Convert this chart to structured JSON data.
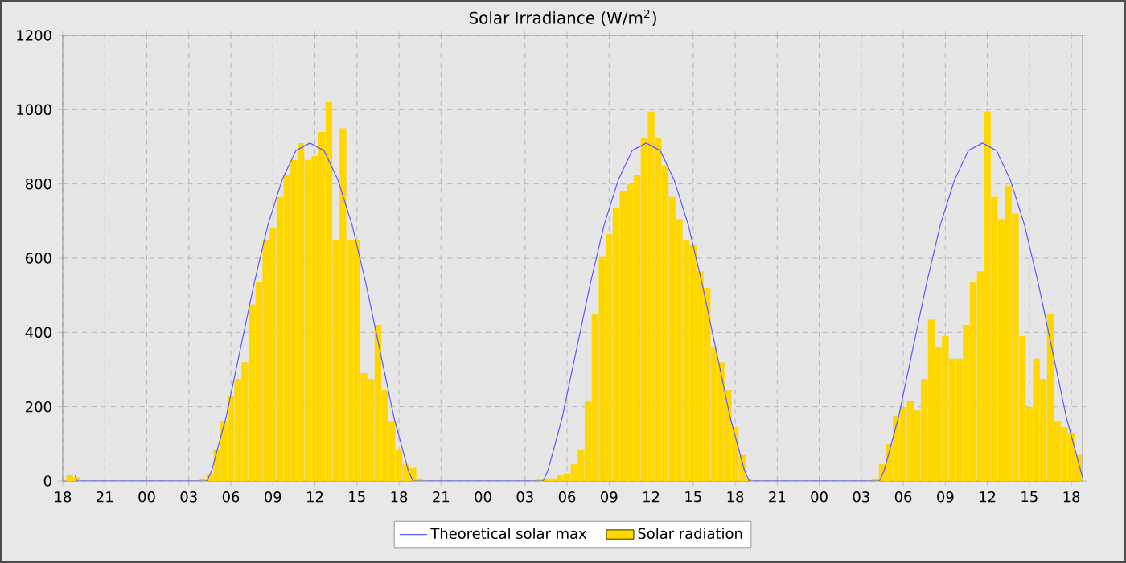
{
  "chart_data": {
    "type": "bar",
    "title": "Solar Irradiance (W/m$^{2}$)",
    "xlim": [
      18,
      90.8
    ],
    "ylim": [
      0,
      1200
    ],
    "xticks": [
      {
        "value": 18,
        "label": "18"
      },
      {
        "value": 21,
        "label": "21"
      },
      {
        "value": 24,
        "label": "00"
      },
      {
        "value": 27,
        "label": "03"
      },
      {
        "value": 30,
        "label": "06"
      },
      {
        "value": 33,
        "label": "09"
      },
      {
        "value": 36,
        "label": "12"
      },
      {
        "value": 39,
        "label": "15"
      },
      {
        "value": 42,
        "label": "18"
      },
      {
        "value": 45,
        "label": "21"
      },
      {
        "value": 48,
        "label": "00"
      },
      {
        "value": 51,
        "label": "03"
      },
      {
        "value": 54,
        "label": "06"
      },
      {
        "value": 57,
        "label": "09"
      },
      {
        "value": 60,
        "label": "12"
      },
      {
        "value": 63,
        "label": "15"
      },
      {
        "value": 66,
        "label": "18"
      },
      {
        "value": 69,
        "label": "21"
      },
      {
        "value": 72,
        "label": "00"
      },
      {
        "value": 75,
        "label": "03"
      },
      {
        "value": 78,
        "label": "06"
      },
      {
        "value": 81,
        "label": "09"
      },
      {
        "value": 84,
        "label": "12"
      },
      {
        "value": 87,
        "label": "15"
      },
      {
        "value": 90,
        "label": "18"
      }
    ],
    "yticks": [
      0,
      200,
      400,
      600,
      800,
      1000,
      1200
    ],
    "grid": true,
    "legend": "bottom",
    "series": [
      {
        "name": "Theoretical solar max",
        "type": "line",
        "color": "#5a5aff",
        "line_style": "solid",
        "x": [
          18.9,
          19.0,
          28.3,
          28.65,
          29.65,
          30.65,
          31.65,
          32.65,
          33.65,
          34.65,
          35.65,
          36.65,
          37.65,
          38.65,
          39.65,
          40.65,
          41.65,
          42.65,
          43.0,
          52.3,
          52.65,
          53.65,
          54.65,
          55.65,
          56.65,
          57.65,
          58.65,
          59.65,
          60.65,
          61.65,
          62.65,
          63.65,
          64.65,
          65.65,
          66.65,
          67.0,
          76.3,
          76.65,
          77.65,
          78.65,
          79.65,
          80.65,
          81.65,
          82.65,
          83.65,
          84.65,
          85.65,
          86.65,
          87.65,
          88.65,
          89.65,
          90.65,
          90.8
        ],
        "values": [
          15,
          0,
          0,
          30,
          170,
          350,
          530,
          690,
          810,
          890,
          910,
          890,
          810,
          690,
          530,
          350,
          170,
          30,
          0,
          0,
          30,
          170,
          350,
          530,
          690,
          810,
          890,
          910,
          890,
          810,
          690,
          530,
          350,
          170,
          30,
          0,
          0,
          30,
          170,
          350,
          530,
          690,
          810,
          890,
          910,
          890,
          810,
          690,
          530,
          350,
          170,
          30,
          10
        ]
      },
      {
        "name": "Solar radiation",
        "color": "#ffd700",
        "x": [
          18.5,
          19.0,
          28.0,
          28.5,
          29.0,
          29.5,
          30.0,
          30.5,
          31.0,
          31.5,
          32.0,
          32.5,
          33.0,
          33.5,
          34.0,
          34.5,
          35.0,
          35.5,
          36.0,
          36.5,
          37.0,
          37.5,
          38.0,
          38.5,
          39.0,
          39.5,
          40.0,
          40.5,
          41.0,
          41.5,
          42.0,
          42.5,
          43.0,
          43.5,
          52.0,
          52.5,
          53.0,
          53.5,
          54.0,
          54.5,
          55.0,
          55.5,
          56.0,
          56.5,
          57.0,
          57.5,
          58.0,
          58.5,
          59.0,
          59.5,
          60.0,
          60.5,
          61.0,
          61.5,
          62.0,
          62.5,
          63.0,
          63.5,
          64.0,
          64.5,
          65.0,
          65.5,
          66.0,
          66.5,
          67.0,
          76.0,
          76.5,
          77.0,
          77.5,
          78.0,
          78.5,
          79.0,
          79.5,
          80.0,
          80.5,
          81.0,
          81.5,
          82.0,
          82.5,
          83.0,
          83.5,
          84.0,
          84.5,
          85.0,
          85.5,
          86.0,
          86.5,
          87.0,
          87.5,
          88.0,
          88.5,
          89.0,
          89.5,
          90.0,
          90.5
        ],
        "values": [
          15,
          10,
          7,
          20,
          85,
          160,
          230,
          275,
          320,
          475,
          535,
          650,
          680,
          765,
          825,
          865,
          910,
          865,
          875,
          940,
          1020,
          650,
          950,
          650,
          650,
          290,
          275,
          420,
          245,
          160,
          85,
          45,
          35,
          7,
          7,
          7,
          7,
          15,
          20,
          45,
          85,
          215,
          450,
          605,
          665,
          735,
          780,
          800,
          825,
          925,
          995,
          925,
          850,
          765,
          705,
          650,
          635,
          565,
          520,
          360,
          320,
          245,
          145,
          70,
          7,
          7,
          45,
          100,
          175,
          200,
          215,
          190,
          275,
          435,
          360,
          390,
          330,
          330,
          420,
          535,
          565,
          995,
          765,
          705,
          795,
          720,
          390,
          200,
          330,
          275,
          450,
          160,
          145,
          130,
          70
        ]
      }
    ]
  }
}
